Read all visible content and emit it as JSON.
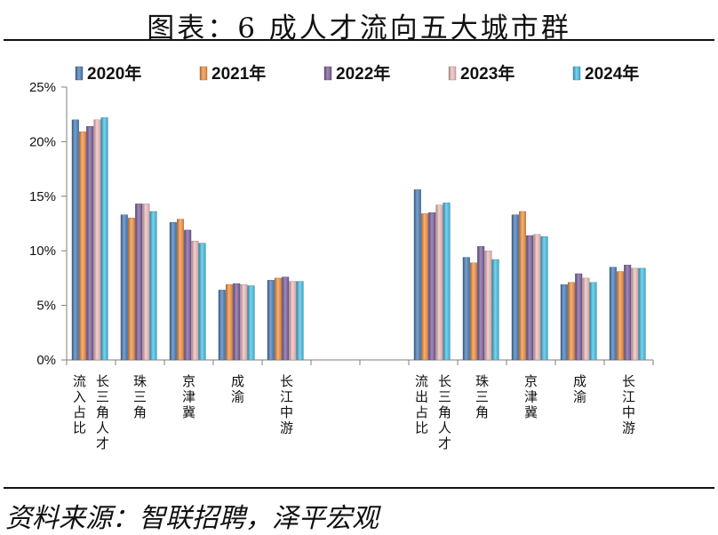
{
  "title": "图表：6 成人才流向五大城市群",
  "source": "资料来源：智联招聘，泽平宏观",
  "chart_data": {
    "type": "bar",
    "y_axis": {
      "min": 0,
      "max": 25,
      "step": 5,
      "format": "percent",
      "ticks": [
        "0%",
        "5%",
        "10%",
        "15%",
        "20%",
        "25%"
      ]
    },
    "legend_position": "top",
    "series": [
      {
        "name": "2020年",
        "color": "#4f81bd",
        "values": [
          22.0,
          13.3,
          12.6,
          6.4,
          7.3,
          null,
          null,
          15.6,
          9.4,
          13.3,
          6.9,
          8.5
        ]
      },
      {
        "name": "2021年",
        "color": "#f79646",
        "values": [
          20.9,
          13.0,
          12.9,
          6.9,
          7.5,
          null,
          null,
          13.4,
          8.9,
          13.6,
          7.1,
          8.1
        ]
      },
      {
        "name": "2022年",
        "color": "#8064a2",
        "values": [
          21.4,
          14.3,
          11.9,
          7.0,
          7.6,
          null,
          null,
          13.5,
          10.4,
          11.4,
          7.9,
          8.7
        ]
      },
      {
        "name": "2023年",
        "color": "#f2c0c0",
        "values": [
          22.0,
          14.3,
          10.9,
          6.9,
          7.2,
          null,
          null,
          14.2,
          10.0,
          11.5,
          7.5,
          8.4
        ]
      },
      {
        "name": "2024年",
        "color": "#4bc4eb",
        "values": [
          22.2,
          13.6,
          10.7,
          6.8,
          7.2,
          null,
          null,
          14.4,
          9.2,
          11.3,
          7.1,
          8.4
        ]
      }
    ],
    "categories": [
      {
        "columns": [
          "流入占比",
          "长三角人才"
        ]
      },
      {
        "columns": [
          "珠三角"
        ]
      },
      {
        "columns": [
          "京津冀"
        ]
      },
      {
        "columns": [
          "成渝"
        ]
      },
      {
        "columns": [
          "长江中游"
        ]
      },
      {
        "columns": []
      },
      {
        "columns": []
      },
      {
        "columns": [
          "流出占比",
          "长三角人才"
        ]
      },
      {
        "columns": [
          "珠三角"
        ]
      },
      {
        "columns": [
          "京津冀"
        ]
      },
      {
        "columns": [
          "成渝"
        ]
      },
      {
        "columns": [
          "长江中游"
        ]
      }
    ]
  }
}
